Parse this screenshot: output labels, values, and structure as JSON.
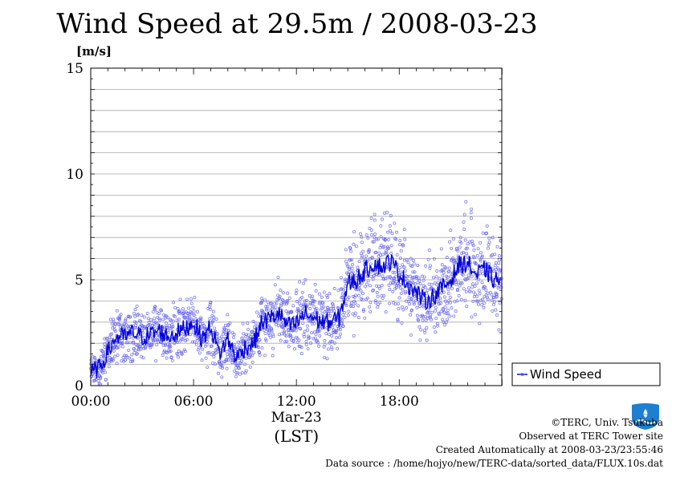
{
  "chart_data": {
    "type": "scatter",
    "title": "Wind Speed at 29.5m / 2008-03-23",
    "ylabel": "[m/s]",
    "xlabel": "(LST)",
    "date_label": "Mar-23",
    "ylim": [
      0,
      15
    ],
    "xlim": [
      "00:00",
      "23:59"
    ],
    "x_ticks": [
      "00:00",
      "06:00",
      "12:00",
      "18:00"
    ],
    "y_ticks": [
      "0",
      "5",
      "10",
      "15"
    ],
    "grid": true,
    "legend": {
      "position": "right",
      "entries": [
        "Wind Speed"
      ]
    },
    "series": [
      {
        "name": "Wind Speed",
        "style": "line with 10 s scatter points",
        "x": [
          "00:00",
          "00:30",
          "01:00",
          "01:30",
          "02:00",
          "02:30",
          "03:00",
          "03:30",
          "04:00",
          "04:30",
          "05:00",
          "05:30",
          "06:00",
          "06:30",
          "07:00",
          "07:30",
          "08:00",
          "08:30",
          "09:00",
          "09:30",
          "10:00",
          "10:30",
          "11:00",
          "11:30",
          "12:00",
          "12:30",
          "13:00",
          "13:30",
          "14:00",
          "14:30",
          "15:00",
          "15:30",
          "16:00",
          "16:30",
          "17:00",
          "17:30",
          "18:00",
          "18:30",
          "19:00",
          "19:30",
          "20:00",
          "20:30",
          "21:00",
          "21:30",
          "22:00",
          "22:30",
          "23:00",
          "23:30"
        ],
        "values": [
          0.6,
          0.8,
          1.6,
          2.3,
          2.3,
          2.5,
          2.3,
          2.4,
          2.6,
          2.3,
          2.5,
          2.7,
          3.0,
          2.2,
          2.8,
          1.5,
          2.2,
          1.3,
          1.8,
          2.0,
          3.0,
          3.2,
          3.4,
          2.8,
          2.9,
          3.4,
          3.2,
          3.0,
          3.0,
          3.2,
          4.8,
          5.0,
          5.4,
          5.8,
          5.6,
          5.9,
          5.3,
          4.8,
          4.4,
          4.0,
          4.2,
          4.6,
          5.0,
          5.7,
          5.8,
          5.2,
          5.5,
          5.0
        ]
      }
    ]
  },
  "footer": {
    "copyright": "©TERC, Univ. Tsukuba",
    "site": "Observed at TERC Tower site",
    "created": "Created Automatically at 2008-03-23/23:55:46",
    "source": "Data source : /home/hojyo/new/TERC-data/sorted_data/FLUX.10s.dat"
  },
  "logo": {
    "text": "TERC"
  },
  "colors": {
    "line": "#0000dd",
    "points": "#6a6af0",
    "grid": "#aaaaaa",
    "logo": "#1e7fd0"
  }
}
